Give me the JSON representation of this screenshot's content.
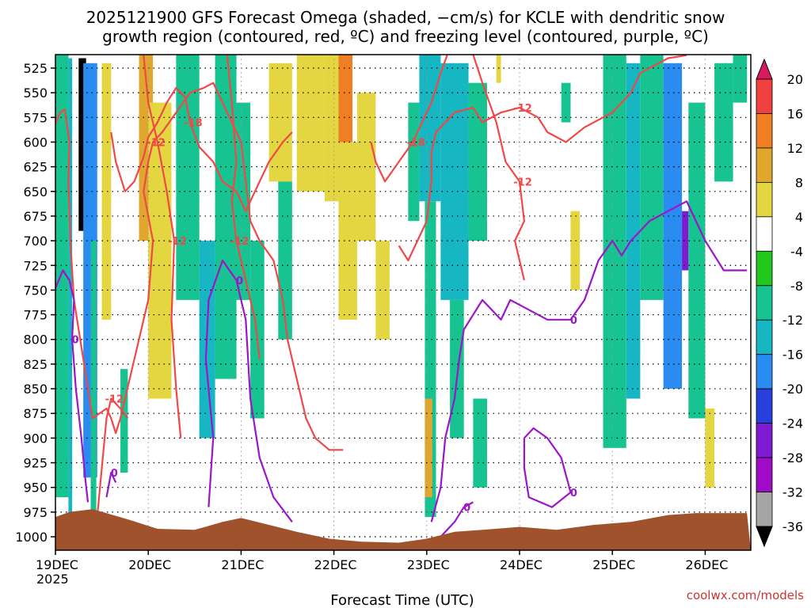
{
  "chart_data": {
    "type": "heatmap",
    "title_line1": "2025121900 GFS Forecast Omega (shaded, −cm/s) for KCLE with dendritic snow",
    "title_line2": "growth region (contoured, red, ºC) and freezing level (contoured, purple, ºC)",
    "xlabel": "Forecast Time (UTC)",
    "credit": "coolwx.com/models",
    "x_ticks": [
      "19DEC",
      "20DEC",
      "21DEC",
      "22DEC",
      "23DEC",
      "24DEC",
      "25DEC",
      "26DEC"
    ],
    "x_year": "2025",
    "x_range_days": [
      0,
      7.45
    ],
    "y_ticks": [
      "525",
      "550",
      "575",
      "600",
      "625",
      "650",
      "675",
      "700",
      "725",
      "750",
      "775",
      "800",
      "825",
      "850",
      "875",
      "900",
      "925",
      "950",
      "975",
      "1000"
    ],
    "y_range_hpa": [
      1008,
      510
    ],
    "colorbar_labels": [
      "20",
      "16",
      "12",
      "8",
      "4",
      "-4",
      "-8",
      "-12",
      "-16",
      "-20",
      "-24",
      "-28",
      "-32",
      "-36"
    ],
    "colorbar_colors": [
      "#d81b60",
      "#f14040",
      "#f07f24",
      "#e0a62d",
      "#e4d640",
      "#ffffff",
      "#22c81e",
      "#16c391",
      "#16b6c2",
      "#2a8cf0",
      "#2740dd",
      "#7e1ad0",
      "#a00bc8",
      "#a5a5a5",
      "#000000"
    ],
    "omega_bands": [
      {
        "t0": 0.0,
        "t1": 0.14,
        "p0": 510,
        "p1": 960,
        "level": "-8"
      },
      {
        "t0": 0.14,
        "t1": 0.18,
        "p0": 515,
        "p1": 985,
        "level": "-12"
      },
      {
        "t0": 0.25,
        "t1": 0.33,
        "p0": 515,
        "p1": 690,
        "level": "-36"
      },
      {
        "t0": 0.3,
        "t1": 0.45,
        "p0": 520,
        "p1": 940,
        "level": "-16"
      },
      {
        "t0": 0.38,
        "t1": 0.44,
        "p0": 700,
        "p1": 980,
        "level": "-8"
      },
      {
        "t0": 0.5,
        "t1": 0.6,
        "p0": 520,
        "p1": 780,
        "level": "4"
      },
      {
        "t0": 0.7,
        "t1": 0.78,
        "p0": 830,
        "p1": 935,
        "level": "-8"
      },
      {
        "t0": 0.9,
        "t1": 1.05,
        "p0": 510,
        "p1": 700,
        "level": "8"
      },
      {
        "t0": 1.0,
        "t1": 1.25,
        "p0": 560,
        "p1": 860,
        "level": "4"
      },
      {
        "t0": 1.3,
        "t1": 1.55,
        "p0": 510,
        "p1": 760,
        "level": "-8"
      },
      {
        "t0": 1.55,
        "t1": 1.72,
        "p0": 700,
        "p1": 900,
        "level": "-12"
      },
      {
        "t0": 1.72,
        "t1": 1.95,
        "p0": 510,
        "p1": 840,
        "level": "-8"
      },
      {
        "t0": 1.95,
        "t1": 2.1,
        "p0": 560,
        "p1": 760,
        "level": "-8"
      },
      {
        "t0": 2.1,
        "t1": 2.25,
        "p0": 700,
        "p1": 880,
        "level": "-8"
      },
      {
        "t0": 2.3,
        "t1": 2.55,
        "p0": 520,
        "p1": 640,
        "level": "4"
      },
      {
        "t0": 2.4,
        "t1": 2.55,
        "p0": 640,
        "p1": 800,
        "level": "-8"
      },
      {
        "t0": 2.6,
        "t1": 2.9,
        "p0": 510,
        "p1": 650,
        "level": "4"
      },
      {
        "t0": 2.9,
        "t1": 3.05,
        "p0": 510,
        "p1": 660,
        "level": "4"
      },
      {
        "t0": 3.05,
        "t1": 3.2,
        "p0": 510,
        "p1": 600,
        "level": "12"
      },
      {
        "t0": 3.05,
        "t1": 3.25,
        "p0": 600,
        "p1": 780,
        "level": "4"
      },
      {
        "t0": 3.25,
        "t1": 3.45,
        "p0": 550,
        "p1": 700,
        "level": "4"
      },
      {
        "t0": 3.45,
        "t1": 3.6,
        "p0": 700,
        "p1": 800,
        "level": "4"
      },
      {
        "t0": 3.8,
        "t1": 3.92,
        "p0": 560,
        "p1": 680,
        "level": "-8"
      },
      {
        "t0": 3.92,
        "t1": 4.15,
        "p0": 510,
        "p1": 660,
        "level": "-12"
      },
      {
        "t0": 3.98,
        "t1": 4.1,
        "p0": 660,
        "p1": 980,
        "level": "-8"
      },
      {
        "t0": 3.98,
        "t1": 4.06,
        "p0": 860,
        "p1": 960,
        "level": "8"
      },
      {
        "t0": 4.15,
        "t1": 4.45,
        "p0": 520,
        "p1": 760,
        "level": "-12"
      },
      {
        "t0": 4.25,
        "t1": 4.4,
        "p0": 760,
        "p1": 900,
        "level": "-8"
      },
      {
        "t0": 4.45,
        "t1": 4.65,
        "p0": 540,
        "p1": 700,
        "level": "-8"
      },
      {
        "t0": 4.5,
        "t1": 4.65,
        "p0": 860,
        "p1": 950,
        "level": "-8"
      },
      {
        "t0": 4.75,
        "t1": 4.8,
        "p0": 510,
        "p1": 540,
        "level": "4"
      },
      {
        "t0": 5.45,
        "t1": 5.55,
        "p0": 540,
        "p1": 580,
        "level": "-8"
      },
      {
        "t0": 5.55,
        "t1": 5.65,
        "p0": 670,
        "p1": 750,
        "level": "4"
      },
      {
        "t0": 5.9,
        "t1": 6.15,
        "p0": 510,
        "p1": 910,
        "level": "-8"
      },
      {
        "t0": 6.15,
        "t1": 6.3,
        "p0": 520,
        "p1": 860,
        "level": "-12"
      },
      {
        "t0": 6.3,
        "t1": 6.55,
        "p0": 510,
        "p1": 760,
        "level": "-8"
      },
      {
        "t0": 6.55,
        "t1": 6.75,
        "p0": 520,
        "p1": 850,
        "level": "-16"
      },
      {
        "t0": 6.75,
        "t1": 6.82,
        "p0": 670,
        "p1": 730,
        "level": "-24"
      },
      {
        "t0": 6.82,
        "t1": 7.0,
        "p0": 560,
        "p1": 880,
        "level": "-8"
      },
      {
        "t0": 7.0,
        "t1": 7.1,
        "p0": 870,
        "p1": 950,
        "level": "4"
      },
      {
        "t0": 7.1,
        "t1": 7.3,
        "p0": 520,
        "p1": 640,
        "level": "-8"
      },
      {
        "t0": 7.3,
        "t1": 7.45,
        "p0": 510,
        "p1": 560,
        "level": "-8"
      }
    ],
    "contours": {
      "dgz_minus12": [
        {
          "label": "-12",
          "points": [
            [
              0,
              582
            ],
            [
              0.05,
              570
            ],
            [
              0.1,
              567
            ],
            [
              0.12,
              580
            ],
            [
              0.15,
              600
            ],
            [
              0.14,
              640
            ],
            [
              0.16,
              700
            ],
            [
              0.2,
              760
            ],
            [
              0.3,
              820
            ],
            [
              0.4,
              880
            ],
            [
              0.55,
              870
            ],
            [
              0.6,
              880
            ],
            [
              0.65,
              895
            ],
            [
              0.7,
              880
            ],
            [
              0.75,
              860
            ],
            [
              0.85,
              820
            ],
            [
              1.0,
              760
            ],
            [
              1.05,
              700
            ],
            [
              0.95,
              650
            ],
            [
              1.0,
              620
            ],
            [
              1.05,
              600
            ],
            [
              1.15,
              590
            ],
            [
              1.3,
              570
            ],
            [
              1.45,
              550
            ],
            [
              1.6,
              545
            ],
            [
              1.7,
              540
            ],
            [
              1.8,
              560
            ],
            [
              1.9,
              580
            ],
            [
              2.0,
              600
            ],
            [
              2.05,
              640
            ],
            [
              2.1,
              680
            ],
            [
              2.2,
              700
            ],
            [
              2.35,
              720
            ],
            [
              2.45,
              760
            ],
            [
              2.5,
              800
            ],
            [
              2.6,
              840
            ],
            [
              2.7,
              880
            ],
            [
              2.8,
              900
            ],
            [
              2.95,
              912
            ],
            [
              3.1,
              912
            ]
          ]
        },
        {
          "label": "-12",
          "points": [
            [
              3.7,
              705
            ],
            [
              3.8,
              720
            ],
            [
              3.9,
              700
            ],
            [
              4.0,
              680
            ],
            [
              4.05,
              640
            ],
            [
              4.05,
              610
            ],
            [
              4.1,
              590
            ],
            [
              4.3,
              570
            ],
            [
              4.5,
              565
            ],
            [
              4.6,
              580
            ],
            [
              4.8,
              570
            ],
            [
              5.0,
              565
            ],
            [
              5.2,
              575
            ],
            [
              5.3,
              590
            ],
            [
              5.5,
              600
            ],
            [
              5.7,
              585
            ],
            [
              6.0,
              570
            ],
            [
              6.2,
              550
            ],
            [
              6.3,
              530
            ],
            [
              6.5,
              520
            ],
            [
              6.6,
              515
            ],
            [
              6.8,
              512
            ]
          ]
        },
        {
          "label": "-12",
          "points": [
            [
              0.45,
              980
            ],
            [
              0.5,
              930
            ],
            [
              0.55,
              880
            ],
            [
              0.6,
              860
            ],
            [
              0.7,
              870
            ],
            [
              0.78,
              880
            ]
          ]
        },
        {
          "label": "-12",
          "points": [
            [
              0.95,
              512
            ],
            [
              1.0,
              560
            ],
            [
              1.1,
              600
            ],
            [
              1.2,
              650
            ],
            [
              1.28,
              700
            ],
            [
              1.25,
              780
            ],
            [
              1.3,
              850
            ],
            [
              1.35,
              900
            ]
          ]
        },
        {
          "label": "-12",
          "points": [
            [
              1.85,
              510
            ],
            [
              1.9,
              560
            ],
            [
              1.95,
              620
            ],
            [
              1.9,
              660
            ],
            [
              1.95,
              700
            ],
            [
              2.05,
              740
            ],
            [
              2.15,
              780
            ],
            [
              2.2,
              820
            ]
          ]
        },
        {
          "label": "-12",
          "points": [
            [
              4.5,
              510
            ],
            [
              4.6,
              540
            ],
            [
              4.75,
              580
            ],
            [
              4.85,
              620
            ],
            [
              5.0,
              640
            ],
            [
              5.05,
              680
            ],
            [
              4.95,
              700
            ],
            [
              5.05,
              740
            ]
          ]
        }
      ],
      "dgz_minus18": [
        {
          "label": "-18",
          "points": [
            [
              0.6,
              590
            ],
            [
              0.65,
              620
            ],
            [
              0.75,
              650
            ],
            [
              0.85,
              640
            ],
            [
              0.95,
              615
            ],
            [
              1.0,
              595
            ],
            [
              1.1,
              580
            ],
            [
              1.2,
              560
            ],
            [
              1.3,
              545
            ],
            [
              1.4,
              555
            ],
            [
              1.45,
              580
            ],
            [
              1.55,
              605
            ],
            [
              1.7,
              620
            ],
            [
              1.8,
              640
            ],
            [
              1.95,
              650
            ],
            [
              2.05,
              670
            ],
            [
              2.2,
              640
            ],
            [
              2.3,
              620
            ],
            [
              2.45,
              600
            ],
            [
              2.55,
              590
            ]
          ]
        },
        {
          "label": "-18",
          "points": [
            [
              3.4,
              600
            ],
            [
              3.45,
              620
            ],
            [
              3.55,
              640
            ],
            [
              3.7,
              620
            ],
            [
              3.85,
              600
            ],
            [
              3.95,
              580
            ],
            [
              4.05,
              560
            ],
            [
              4.15,
              530
            ],
            [
              4.22,
              512
            ]
          ]
        }
      ],
      "freezing_0c": [
        {
          "label": "0",
          "points": [
            [
              0,
              748
            ],
            [
              0.08,
              730
            ],
            [
              0.15,
              740
            ],
            [
              0.2,
              760
            ],
            [
              0.18,
              800
            ],
            [
              0.22,
              850
            ],
            [
              0.28,
              900
            ],
            [
              0.32,
              940
            ],
            [
              0.35,
              965
            ]
          ]
        },
        {
          "label": "0",
          "points": [
            [
              0.55,
              960
            ],
            [
              0.6,
              935
            ],
            [
              0.65,
              945
            ]
          ]
        },
        {
          "label": "0",
          "points": [
            [
              1.65,
              970
            ],
            [
              1.7,
              900
            ],
            [
              1.62,
              820
            ],
            [
              1.65,
              760
            ],
            [
              1.8,
              720
            ],
            [
              1.95,
              740
            ],
            [
              2.05,
              780
            ],
            [
              2.1,
              860
            ],
            [
              2.2,
              920
            ],
            [
              2.35,
              960
            ],
            [
              2.55,
              985
            ]
          ]
        },
        {
          "label": "0",
          "points": [
            [
              4.15,
              1000
            ],
            [
              4.3,
              985
            ],
            [
              4.4,
              970
            ],
            [
              4.5,
              965
            ]
          ]
        },
        {
          "label": "0",
          "points": [
            [
              4.05,
              985
            ],
            [
              4.15,
              950
            ],
            [
              4.2,
              900
            ],
            [
              4.3,
              860
            ],
            [
              4.35,
              820
            ],
            [
              4.4,
              790
            ],
            [
              4.6,
              760
            ],
            [
              4.8,
              780
            ],
            [
              4.9,
              760
            ],
            [
              5.1,
              770
            ],
            [
              5.3,
              780
            ],
            [
              5.55,
              780
            ],
            [
              5.7,
              760
            ],
            [
              5.85,
              720
            ],
            [
              6.0,
              700
            ],
            [
              6.1,
              715
            ],
            [
              6.2,
              700
            ],
            [
              6.4,
              680
            ],
            [
              6.6,
              670
            ],
            [
              6.8,
              660
            ],
            [
              7.0,
              700
            ],
            [
              7.2,
              730
            ],
            [
              7.45,
              730
            ]
          ]
        },
        {
          "label": "0",
          "points": [
            [
              5.05,
              900
            ],
            [
              5.15,
              890
            ],
            [
              5.3,
              900
            ],
            [
              5.45,
              920
            ],
            [
              5.55,
              955
            ],
            [
              5.35,
              970
            ],
            [
              5.1,
              960
            ],
            [
              5.05,
              930
            ],
            [
              5.05,
              900
            ]
          ]
        }
      ]
    }
  }
}
